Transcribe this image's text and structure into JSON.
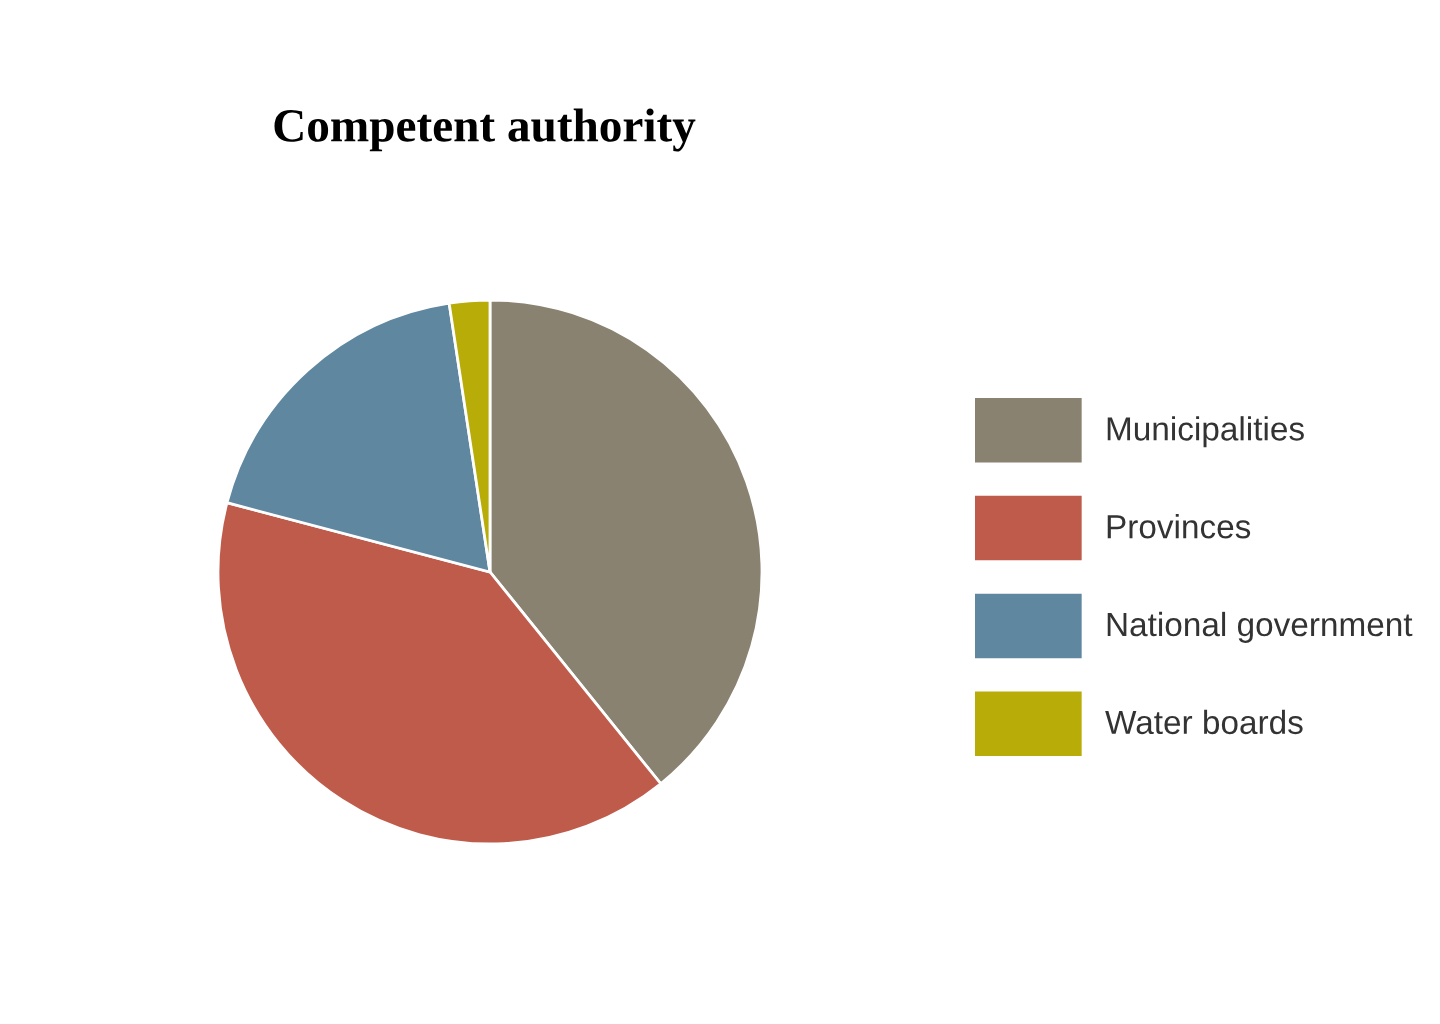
{
  "chart_data": {
    "type": "pie",
    "title": "Competent authority",
    "categories": [
      "Municipalities",
      "Provinces",
      "National government",
      "Water boards"
    ],
    "values": [
      39.2,
      39.9,
      18.5,
      2.4
    ],
    "colors": [
      "#8a8270",
      "#bf5b4b",
      "#5f87a0",
      "#b8ad08"
    ],
    "legend": "right"
  }
}
